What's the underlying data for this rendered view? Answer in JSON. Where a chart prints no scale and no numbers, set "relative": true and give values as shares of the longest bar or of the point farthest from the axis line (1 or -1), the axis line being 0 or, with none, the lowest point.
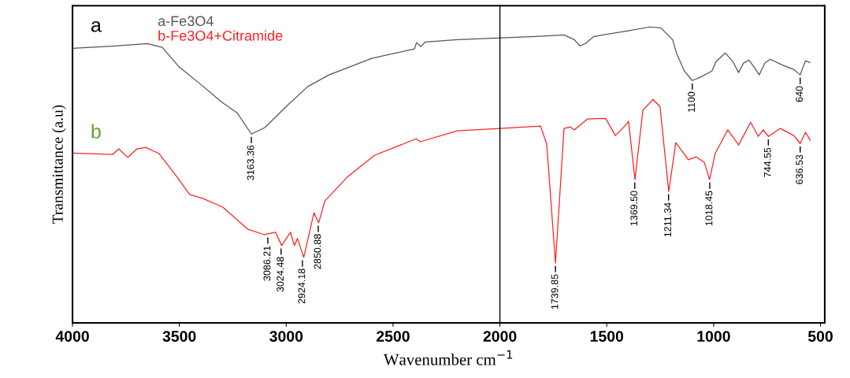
{
  "chart_data": {
    "type": "line",
    "relative": true,
    "xlabel": "Wavenumber cm$^{−1}$",
    "ylabel": "Transmittance (a.u)",
    "xlim": [
      4000,
      480
    ],
    "xticks": [
      4000,
      3500,
      3000,
      2500,
      2000,
      1500,
      1000,
      500
    ],
    "grid": false,
    "legend": "top left",
    "marker": "none",
    "line_style": "solid",
    "series": [
      {
        "name": "a-Fe3O4",
        "color": "#555555",
        "x": [
          4000,
          3800,
          3650,
          3580,
          3500,
          3400,
          3300,
          3230,
          3163,
          3100,
          3000,
          2900,
          2800,
          2600,
          2400,
          2390,
          2370,
          2350,
          2200,
          2000,
          1836,
          1700,
          1652,
          1626,
          1600,
          1560,
          1400,
          1300,
          1247,
          1192,
          1173,
          1137,
          1100,
          1063,
          1008,
          989,
          945,
          910,
          883,
          860,
          835,
          810,
          787,
          760,
          735,
          680,
          625,
          595,
          570,
          550
        ],
        "values": [
          0.928,
          0.936,
          0.944,
          0.931,
          0.864,
          0.806,
          0.745,
          0.71,
          0.638,
          0.66,
          0.731,
          0.798,
          0.838,
          0.894,
          0.926,
          0.947,
          0.934,
          0.949,
          0.957,
          0.963,
          0.968,
          0.973,
          0.957,
          0.936,
          0.944,
          0.968,
          0.987,
          1.0,
          0.997,
          0.957,
          0.91,
          0.851,
          0.819,
          0.83,
          0.851,
          0.883,
          0.912,
          0.883,
          0.846,
          0.878,
          0.888,
          0.864,
          0.838,
          0.878,
          0.891,
          0.872,
          0.856,
          0.838,
          0.886,
          0.88
        ]
      },
      {
        "name": "b-Fe3O4+Citramide",
        "color": "#ff2020",
        "x": [
          4000,
          3812,
          3783,
          3742,
          3698,
          3658,
          3595,
          3518,
          3452,
          3389,
          3297,
          3179,
          3102,
          3050,
          3021,
          2980,
          2962,
          2947,
          2918,
          2870,
          2848,
          2819,
          2715,
          2587,
          2392,
          2373,
          2200,
          2000,
          1810,
          1781,
          1740,
          1700,
          1670,
          1652,
          1590,
          1505,
          1460,
          1416,
          1398,
          1368,
          1331,
          1284,
          1251,
          1210,
          1177,
          1118,
          1081,
          1044,
          1019,
          993,
          934,
          883,
          827,
          791,
          768,
          743,
          688,
          625,
          595,
          570,
          548
        ],
        "values": [
          0.574,
          0.569,
          0.588,
          0.559,
          0.588,
          0.593,
          0.572,
          0.5,
          0.434,
          0.42,
          0.391,
          0.316,
          0.298,
          0.306,
          0.261,
          0.306,
          0.261,
          0.285,
          0.221,
          0.372,
          0.338,
          0.412,
          0.492,
          0.566,
          0.622,
          0.612,
          0.649,
          0.657,
          0.665,
          0.604,
          0.202,
          0.657,
          0.662,
          0.652,
          0.689,
          0.691,
          0.633,
          0.665,
          0.681,
          0.484,
          0.718,
          0.755,
          0.731,
          0.444,
          0.609,
          0.551,
          0.561,
          0.543,
          0.484,
          0.572,
          0.652,
          0.601,
          0.678,
          0.63,
          0.652,
          0.63,
          0.657,
          0.633,
          0.606,
          0.644,
          0.617
        ]
      }
    ],
    "ref_lines": [
      {
        "axis": "x",
        "value": 2000,
        "color": "#000000"
      }
    ],
    "annotations": [
      {
        "text": "a",
        "x": 3890,
        "y": 0.93
      },
      {
        "text": "b",
        "x": 3890,
        "y": 0.57
      },
      {
        "text": "3163.36",
        "x": 3163,
        "y": 0.638
      },
      {
        "text": "1100",
        "x": 1100,
        "y": 0.819
      },
      {
        "text": "640",
        "x": 595,
        "y": 0.838
      },
      {
        "text": "3086.21",
        "x": 3086,
        "y": 0.298
      },
      {
        "text": "3024.48",
        "x": 3024,
        "y": 0.261
      },
      {
        "text": "2924.18",
        "x": 2924,
        "y": 0.221
      },
      {
        "text": "2850.88",
        "x": 2850,
        "y": 0.338
      },
      {
        "text": "1739.85",
        "x": 1740,
        "y": 0.202
      },
      {
        "text": "1369.50",
        "x": 1369,
        "y": 0.484
      },
      {
        "text": "1211.34",
        "x": 1211,
        "y": 0.444
      },
      {
        "text": "1018.45",
        "x": 1018,
        "y": 0.484
      },
      {
        "text": "744.55",
        "x": 744,
        "y": 0.63
      },
      {
        "text": "636.53",
        "x": 595,
        "y": 0.606
      }
    ]
  }
}
